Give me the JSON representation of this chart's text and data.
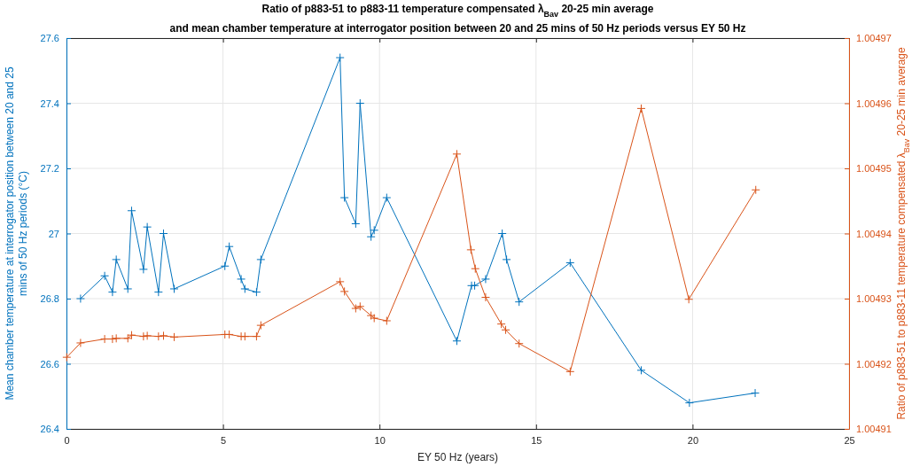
{
  "chart_data": {
    "type": "line",
    "title": "Ratio of p883-51 to p883-11 temperature compensated λ$_{Bav}$ 20-25 min average",
    "subtitle": "and mean chamber temperature at interrogator position between 20 and 25 mins of 50 Hz periods versus EY 50 Hz",
    "xlabel": "EY 50 Hz (years)",
    "ylabel": "Mean chamber temperature at interrogator position between 20 and 25 mins of 50 Hz periods (°C)",
    "y2label": "Ratio of p883-51 to p883-11 temperature compensated λ$_{Bav}$ 20-25 min average",
    "xlim": [
      0,
      25
    ],
    "xticks": [
      0,
      5,
      10,
      15,
      20,
      25
    ],
    "ylim": [
      26.4,
      27.6
    ],
    "yticks": [
      26.4,
      26.6,
      26.8,
      27,
      27.2,
      27.4,
      27.6
    ],
    "y2lim": [
      1.00491,
      1.00497
    ],
    "y2ticks": [
      1.00491,
      1.00492,
      1.00493,
      1.00494,
      1.00495,
      1.00496,
      1.00497
    ],
    "grid": true,
    "marker": "cross",
    "line_style": "solid",
    "series": [
      {
        "color": "#0072bd",
        "x": [
          0.45,
          1.22,
          1.47,
          1.59,
          1.96,
          2.08,
          2.46,
          2.58,
          2.94,
          3.1,
          3.44,
          5.06,
          5.2,
          5.58,
          5.7,
          6.07,
          6.21,
          8.74,
          8.88,
          9.24,
          9.38,
          9.73,
          9.83,
          10.23,
          12.47,
          12.94,
          13.04,
          13.39,
          13.92,
          14.06,
          14.46,
          16.09,
          18.36,
          19.9,
          22.0
        ],
        "values": [
          26.8,
          26.87,
          26.82,
          26.92,
          26.83,
          27.07,
          26.89,
          27.02,
          26.82,
          27.0,
          26.83,
          26.9,
          26.96,
          26.86,
          26.83,
          26.82,
          26.92,
          27.54,
          27.11,
          27.03,
          27.4,
          26.99,
          27.01,
          27.11,
          26.67,
          26.84,
          26.84,
          26.86,
          27.0,
          26.92,
          26.79,
          26.91,
          26.58,
          26.48,
          26.51
        ]
      },
      {
        "color": "#d95319",
        "axis": "y2",
        "x": [
          0.01,
          0.45,
          1.22,
          1.47,
          1.59,
          1.96,
          2.08,
          2.46,
          2.58,
          2.94,
          3.1,
          3.44,
          5.06,
          5.2,
          5.58,
          5.7,
          6.07,
          6.21,
          8.74,
          8.88,
          9.24,
          9.38,
          9.73,
          9.83,
          10.23,
          12.47,
          12.92,
          13.06,
          13.39,
          13.89,
          14.03,
          14.46,
          16.09,
          18.36,
          19.88,
          22.02
        ],
        "values": [
          1.004921,
          1.0049232,
          1.0049238,
          1.0049238,
          1.0049239,
          1.0049239,
          1.0049244,
          1.0049242,
          1.0049243,
          1.0049242,
          1.0049243,
          1.0049241,
          1.0049245,
          1.0049245,
          1.0049242,
          1.0049242,
          1.0049242,
          1.0049259,
          1.0049326,
          1.0049311,
          1.0049285,
          1.0049288,
          1.0049274,
          1.004927,
          1.0049266,
          1.0049522,
          1.0049375,
          1.0049346,
          1.0049302,
          1.0049261,
          1.0049252,
          1.0049231,
          1.0049188,
          1.0049592,
          1.0049299,
          1.0049467
        ]
      }
    ]
  }
}
